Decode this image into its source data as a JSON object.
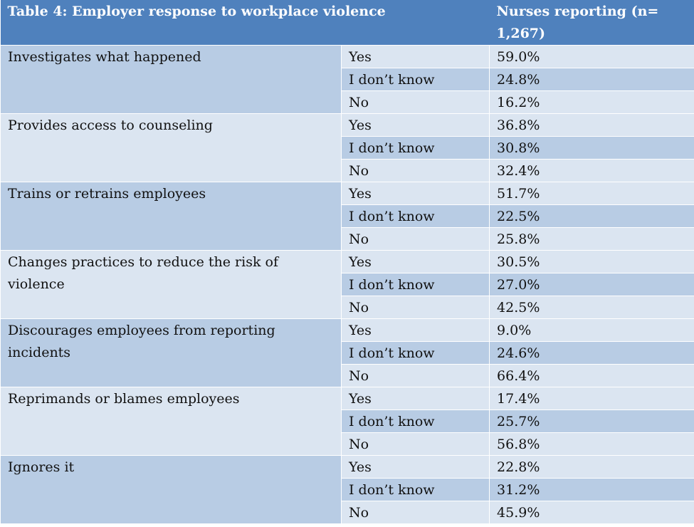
{
  "table": {
    "title": "Table 4: Employer response to workplace violence",
    "column_header": "Nurses reporting (n= 1,267)",
    "groups": [
      {
        "label": "Investigates what happened",
        "rows": [
          {
            "response": "Yes",
            "value": "59.0%"
          },
          {
            "response": "I don’t know",
            "value": "24.8%"
          },
          {
            "response": "No",
            "value": "16.2%"
          }
        ]
      },
      {
        "label": "Provides access to counseling",
        "rows": [
          {
            "response": "Yes",
            "value": "36.8%"
          },
          {
            "response": "I don’t know",
            "value": "30.8%"
          },
          {
            "response": "No",
            "value": "32.4%"
          }
        ]
      },
      {
        "label": "Trains or retrains employees",
        "rows": [
          {
            "response": "Yes",
            "value": "51.7%"
          },
          {
            "response": "I don’t know",
            "value": "22.5%"
          },
          {
            "response": "No",
            "value": "25.8%"
          }
        ]
      },
      {
        "label": "Changes practices to reduce the risk of violence",
        "rows": [
          {
            "response": "Yes",
            "value": "30.5%"
          },
          {
            "response": "I don’t know",
            "value": "27.0%"
          },
          {
            "response": "No",
            "value": "42.5%"
          }
        ]
      },
      {
        "label": "Discourages employees from reporting incidents",
        "rows": [
          {
            "response": "Yes",
            "value": "9.0%"
          },
          {
            "response": "I don’t know",
            "value": "24.6%"
          },
          {
            "response": "No",
            "value": "66.4%"
          }
        ]
      },
      {
        "label": "Reprimands or blames employees",
        "rows": [
          {
            "response": "Yes",
            "value": "17.4%"
          },
          {
            "response": "I don’t know",
            "value": "25.7%"
          },
          {
            "response": "No",
            "value": "56.8%"
          }
        ]
      },
      {
        "label": "Ignores it",
        "rows": [
          {
            "response": "Yes",
            "value": "22.8%"
          },
          {
            "response": "I don’t know",
            "value": "31.2%"
          },
          {
            "response": "No",
            "value": "45.9%"
          }
        ]
      }
    ],
    "colors": {
      "header": "#4f81bd",
      "band_dark": "#b8cce4",
      "band_light": "#dbe5f1"
    }
  }
}
